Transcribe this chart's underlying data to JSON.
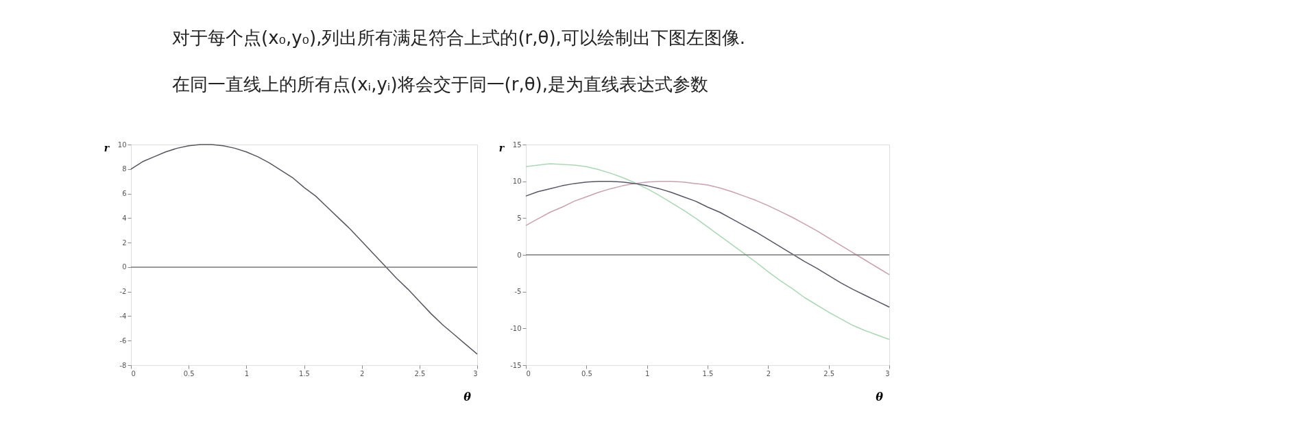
{
  "chart_data": [
    {
      "type": "other",
      "annotations": [
        "对于每个点(x₀,y₀),列出所有满足符合上式的(r,θ),可以绘制出下图左图像.",
        "在同一直线上的所有点(xᵢ,yᵢ)将会交于同一(r,θ),是为直线表达式参数"
      ]
    },
    {
      "type": "line",
      "xlabel": "θ",
      "ylabel": "r",
      "xlim": [
        0,
        3
      ],
      "ylim": [
        -8,
        10
      ],
      "xticks": [
        0,
        0.5,
        1,
        1.5,
        2,
        2.5,
        3
      ],
      "yticks": [
        -8,
        -6,
        -4,
        -2,
        0,
        2,
        4,
        6,
        8,
        10
      ],
      "grid": false,
      "legend": false,
      "x": [
        0,
        0.1,
        0.2,
        0.3,
        0.4,
        0.5,
        0.6,
        0.7,
        0.8,
        0.9,
        1,
        1.1,
        1.2,
        1.3,
        1.4,
        1.5,
        1.6,
        1.7,
        1.8,
        1.9,
        2,
        2.1,
        2.2,
        2.3,
        2.4,
        2.5,
        2.6,
        2.7,
        2.8,
        2.9,
        3
      ],
      "series": [
        {
          "color": "#555560",
          "values": [
            8.0,
            8.6,
            9.0,
            9.4,
            9.7,
            9.9,
            10.0,
            10.0,
            9.9,
            9.7,
            9.4,
            9.0,
            8.5,
            7.9,
            7.3,
            6.5,
            5.8,
            4.9,
            4.0,
            3.1,
            2.1,
            1.1,
            0.1,
            -0.9,
            -1.8,
            -2.8,
            -3.8,
            -4.7,
            -5.5,
            -6.3,
            -7.1
          ]
        }
      ],
      "ref_lines": [
        {
          "axis": "y",
          "value": 0,
          "color": "#777777"
        }
      ]
    },
    {
      "type": "line",
      "xlabel": "θ",
      "ylabel": "r",
      "xlim": [
        0,
        3
      ],
      "ylim": [
        -15,
        15
      ],
      "xticks": [
        0,
        0.5,
        1,
        1.5,
        2,
        2.5,
        3
      ],
      "yticks": [
        -15,
        -10,
        -5,
        0,
        5,
        10,
        15
      ],
      "grid": false,
      "legend": false,
      "x": [
        0,
        0.1,
        0.2,
        0.3,
        0.4,
        0.5,
        0.6,
        0.7,
        0.8,
        0.9,
        1,
        1.1,
        1.2,
        1.3,
        1.4,
        1.5,
        1.6,
        1.7,
        1.8,
        1.9,
        2,
        2.1,
        2.2,
        2.3,
        2.4,
        2.5,
        2.6,
        2.7,
        2.8,
        2.9,
        3
      ],
      "series": [
        {
          "color": "#a9d8b4",
          "values": [
            12.0,
            12.2,
            12.4,
            12.3,
            12.2,
            12.0,
            11.6,
            11.1,
            10.5,
            9.8,
            9.0,
            8.1,
            7.1,
            6.1,
            5.0,
            3.8,
            2.6,
            1.4,
            0.2,
            -1.0,
            -2.3,
            -3.5,
            -4.6,
            -5.8,
            -6.8,
            -7.8,
            -8.7,
            -9.6,
            -10.3,
            -10.9,
            -11.5
          ]
        },
        {
          "color": "#c9a0b0",
          "values": [
            4.0,
            4.9,
            5.8,
            6.5,
            7.3,
            7.9,
            8.5,
            9.0,
            9.4,
            9.7,
            9.9,
            10.0,
            10.0,
            9.9,
            9.7,
            9.5,
            9.1,
            8.6,
            8.0,
            7.4,
            6.7,
            5.9,
            5.1,
            4.2,
            3.3,
            2.3,
            1.3,
            0.3,
            -0.7,
            -1.7,
            -2.7
          ]
        },
        {
          "color": "#555566",
          "values": [
            8.0,
            8.6,
            9.0,
            9.4,
            9.7,
            9.9,
            10.0,
            10.0,
            9.9,
            9.7,
            9.4,
            9.0,
            8.5,
            7.9,
            7.3,
            6.5,
            5.8,
            4.9,
            4.0,
            3.1,
            2.1,
            1.1,
            0.1,
            -0.9,
            -1.8,
            -2.8,
            -3.8,
            -4.7,
            -5.5,
            -6.3,
            -7.1
          ]
        }
      ],
      "ref_lines": [
        {
          "axis": "y",
          "value": 0,
          "color": "#777777"
        }
      ]
    }
  ]
}
